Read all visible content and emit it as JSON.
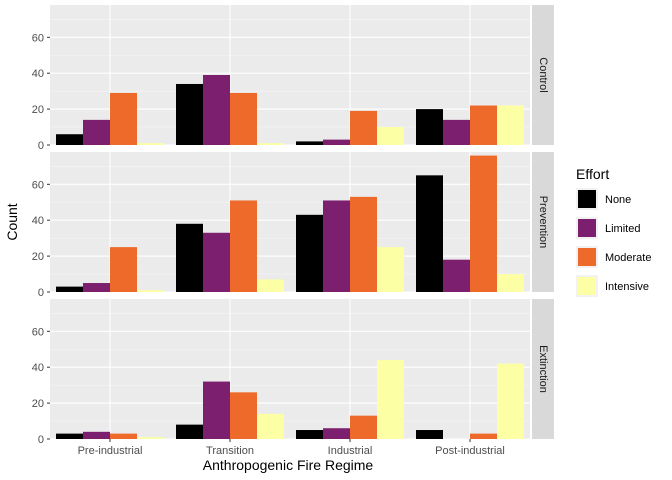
{
  "chart_data": {
    "type": "bar",
    "layout": "faceted grouped bar chart, facets stacked vertically with strip labels on the right",
    "xlabel": "Anthropogenic Fire Regime",
    "ylabel": "Count",
    "ylim": [
      0,
      78
    ],
    "yticks": [
      0,
      20,
      40,
      60
    ],
    "grid": true,
    "legend": {
      "title": "Effort",
      "placement": "right",
      "entries": [
        {
          "name": "None",
          "color": "#000000"
        },
        {
          "name": "Limited",
          "color": "#7B1F6E"
        },
        {
          "name": "Moderate",
          "color": "#EE6A2A"
        },
        {
          "name": "Intensive",
          "color": "#FCFFA4"
        }
      ]
    },
    "categories": [
      "Pre-industrial",
      "Transition",
      "Industrial",
      "Post-industrial"
    ],
    "facets": [
      {
        "label": "Control",
        "series": [
          {
            "name": "None",
            "values": [
              6,
              34,
              2,
              20
            ]
          },
          {
            "name": "Limited",
            "values": [
              14,
              39,
              3,
              14
            ]
          },
          {
            "name": "Moderate",
            "values": [
              29,
              29,
              19,
              22
            ]
          },
          {
            "name": "Intensive",
            "values": [
              1,
              1,
              10,
              22
            ]
          }
        ]
      },
      {
        "label": "Prevention",
        "series": [
          {
            "name": "None",
            "values": [
              3,
              38,
              43,
              65
            ]
          },
          {
            "name": "Limited",
            "values": [
              5,
              33,
              51,
              18
            ]
          },
          {
            "name": "Moderate",
            "values": [
              25,
              51,
              53,
              76
            ]
          },
          {
            "name": "Intensive",
            "values": [
              1,
              7,
              25,
              10
            ]
          }
        ]
      },
      {
        "label": "Extinction",
        "series": [
          {
            "name": "None",
            "values": [
              3,
              8,
              5,
              5
            ]
          },
          {
            "name": "Limited",
            "values": [
              4,
              32,
              6,
              0
            ]
          },
          {
            "name": "Moderate",
            "values": [
              3,
              26,
              13,
              3
            ]
          },
          {
            "name": "Intensive",
            "values": [
              1,
              14,
              44,
              42
            ]
          }
        ]
      }
    ]
  }
}
